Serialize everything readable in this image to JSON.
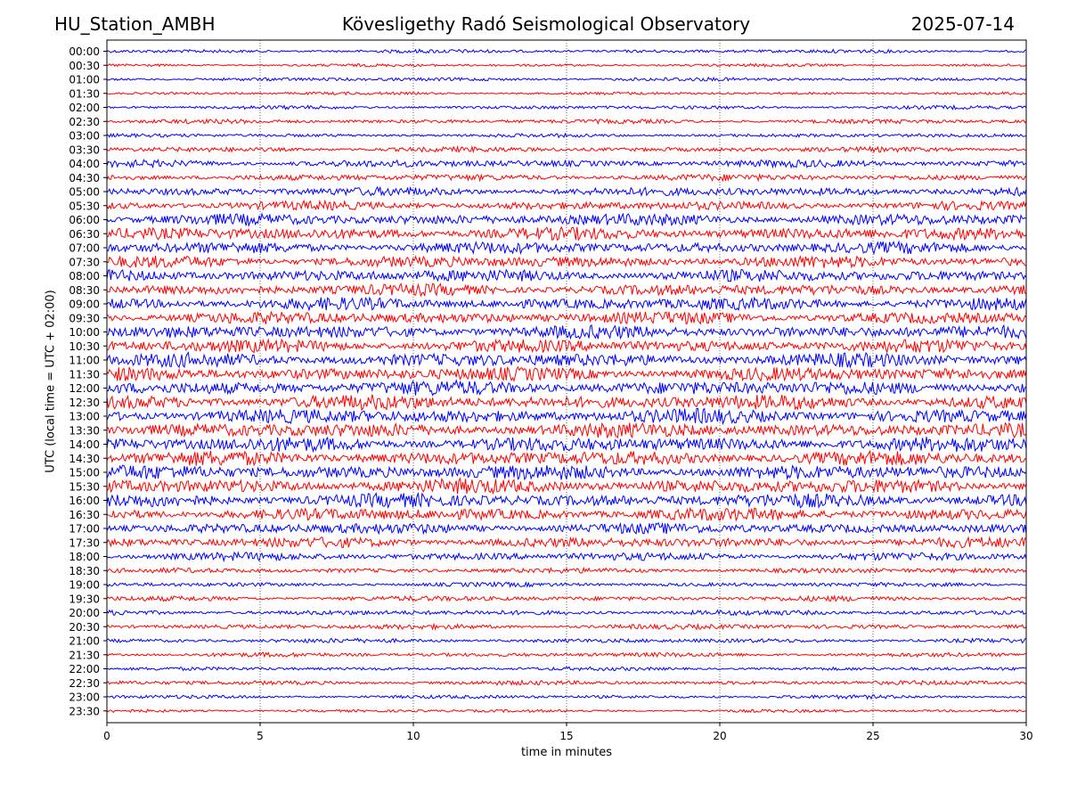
{
  "header": {
    "station": "HU_Station_AMBH",
    "observatory": "Kövesligethy Radó Seismological Observatory",
    "date": "2025-07-14"
  },
  "chart_data": {
    "type": "line",
    "title": "Kövesligethy Radó Seismological Observatory",
    "xlabel": "time in minutes",
    "ylabel": "UTC (local time = UTC + 02:00)",
    "xlim": [
      0,
      30
    ],
    "x_ticks": [
      0,
      5,
      10,
      15,
      20,
      25,
      30
    ],
    "y_tick_labels": [
      "00:00",
      "00:30",
      "01:00",
      "01:30",
      "02:00",
      "02:30",
      "03:00",
      "03:30",
      "04:00",
      "04:30",
      "05:00",
      "05:30",
      "06:00",
      "06:30",
      "07:00",
      "07:30",
      "08:00",
      "08:30",
      "09:00",
      "09:30",
      "10:00",
      "10:30",
      "11:00",
      "11:30",
      "12:00",
      "12:30",
      "13:00",
      "13:30",
      "14:00",
      "14:30",
      "15:00",
      "15:30",
      "16:00",
      "16:30",
      "17:00",
      "17:30",
      "18:00",
      "18:30",
      "19:00",
      "19:30",
      "20:00",
      "20:30",
      "21:00",
      "21:30",
      "22:00",
      "22:30",
      "23:00",
      "23:30"
    ],
    "trace_colors": [
      "#0000ff",
      "#ff0000"
    ],
    "vertical_grid": "dotted",
    "trace_noise_level": [
      0.25,
      0.2,
      0.25,
      0.2,
      0.25,
      0.3,
      0.25,
      0.35,
      0.5,
      0.45,
      0.6,
      0.6,
      0.8,
      0.85,
      0.8,
      0.8,
      0.85,
      0.8,
      0.85,
      0.85,
      0.9,
      0.9,
      0.95,
      0.95,
      1.0,
      1.0,
      1.0,
      1.0,
      1.0,
      1.0,
      1.0,
      1.0,
      0.95,
      0.85,
      0.75,
      0.7,
      0.55,
      0.35,
      0.3,
      0.35,
      0.35,
      0.35,
      0.3,
      0.3,
      0.25,
      0.3,
      0.25,
      0.2
    ]
  }
}
